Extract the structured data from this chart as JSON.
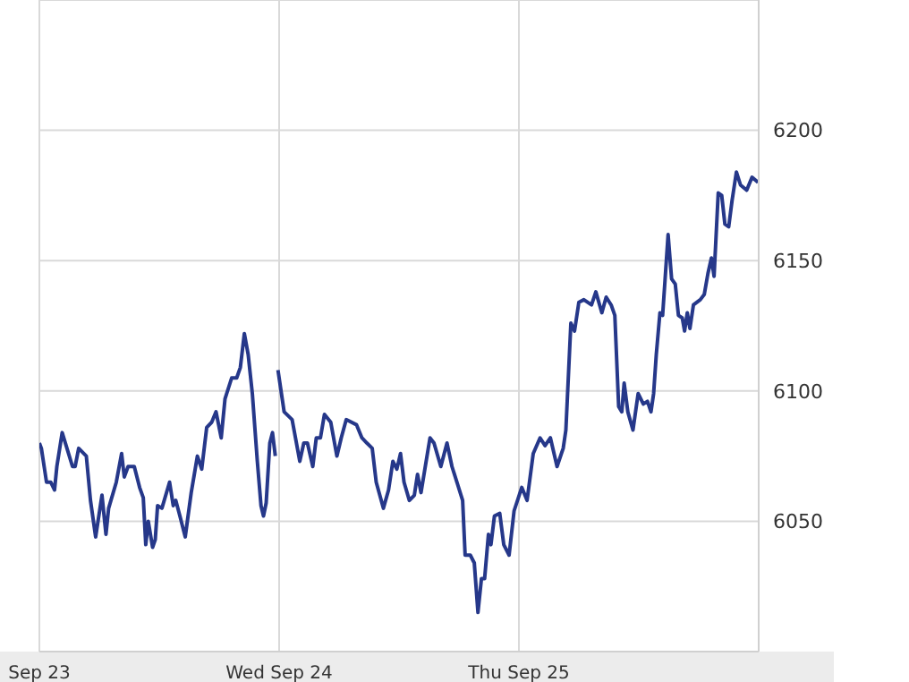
{
  "chart_data": {
    "type": "line",
    "color": "#26388a",
    "x": [
      "--09-23T00:00",
      "--09-23T00:12",
      "--09-23T00:43",
      "--09-23T01:08",
      "--09-23T01:31",
      "--09-23T01:45",
      "--09-23T02:17",
      "--09-23T03:19",
      "--09-23T03:35",
      "--09-23T03:56",
      "--09-23T04:42",
      "--09-23T05:07",
      "--09-23T05:38",
      "--09-23T06:16",
      "--09-23T06:40",
      "--09-23T06:56",
      "--09-23T07:42",
      "--09-23T08:14",
      "--09-23T08:30",
      "--09-23T08:53",
      "--09-23T09:30",
      "--09-23T10:02",
      "--09-23T10:24",
      "--09-23T10:39",
      "--09-23T10:54",
      "--09-23T11:20",
      "--09-23T11:36",
      "--09-23T11:50",
      "--09-23T12:16",
      "--09-23T13:02",
      "--09-23T13:24",
      "--09-23T13:39",
      "--09-23T14:04",
      "--09-23T14:36",
      "--09-23T15:12",
      "--09-23T15:49",
      "--09-23T16:15",
      "--09-23T16:45",
      "--09-23T17:15",
      "--09-23T17:41",
      "--09-23T18:12",
      "--09-23T18:35",
      "--09-23T19:15",
      "--09-23T19:45",
      "--09-23T20:07",
      "--09-23T20:31",
      "--09-23T20:54",
      "--09-23T21:19",
      "--09-23T21:49",
      "--09-23T22:11",
      "--09-23T22:26",
      "--09-23T22:42",
      "--09-23T23:04",
      "--09-23T23:20",
      "--09-23T23:37",
      "--09-23T23:46",
      "--09-23T23:53",
      "--09-24T00:30",
      "--09-24T01:18",
      "--09-24T02:04",
      "--09-24T02:28",
      "--09-24T02:50",
      "--09-24T03:22",
      "--09-24T03:43",
      "--09-24T04:08",
      "--09-24T04:32",
      "--09-24T05:10",
      "--09-24T05:47",
      "--09-24T06:13",
      "--09-24T06:43",
      "--09-24T07:45",
      "--09-24T08:17",
      "--09-24T08:47",
      "--09-24T09:19",
      "--09-24T09:43",
      "--09-24T10:26",
      "--09-24T10:57",
      "--09-24T11:23",
      "--09-24T11:47",
      "--09-24T12:09",
      "--09-24T12:30",
      "--09-24T13:02",
      "--09-24T13:32",
      "--09-24T13:51",
      "--09-24T14:12",
      "--09-24T15:06",
      "--09-24T15:30",
      "--09-24T16:11",
      "--09-24T16:48",
      "--09-24T17:18",
      "--09-24T18:22",
      "--09-24T18:37",
      "--09-24T19:08",
      "--09-24T19:32",
      "--09-24T19:54",
      "--09-24T20:15",
      "--09-24T20:34",
      "--09-24T20:57",
      "--09-24T21:12",
      "--09-24T21:33",
      "--09-24T22:05",
      "--09-24T22:29",
      "--09-24T23:01",
      "--09-24T23:31",
      "--09-25T00:17",
      "--09-25T00:49",
      "--09-25T01:26",
      "--09-25T02:07",
      "--09-25T02:37",
      "--09-25T03:09",
      "--09-25T03:49",
      "--09-25T04:26",
      "--09-25T04:42",
      "--09-25T05:12",
      "--09-25T05:34",
      "--09-25T06:00",
      "--09-25T06:30",
      "--09-25T07:16",
      "--09-25T07:42",
      "--09-25T08:18",
      "--09-25T08:44",
      "--09-25T09:14",
      "--09-25T09:36",
      "--09-25T09:59",
      "--09-25T10:18",
      "--09-25T10:32",
      "--09-25T10:54",
      "--09-25T11:25",
      "--09-25T11:56",
      "--09-25T12:27",
      "--09-25T12:52",
      "--09-25T13:13",
      "--09-25T13:29",
      "--09-25T13:45",
      "--09-25T14:07",
      "--09-25T14:23",
      "--09-25T14:38",
      "--09-25T14:56",
      "--09-25T15:17",
      "--09-25T15:39",
      "--09-25T15:58",
      "--09-25T16:21",
      "--09-25T16:35",
      "--09-25T16:51",
      "--09-25T17:07",
      "--09-25T17:28",
      "--09-25T18:09",
      "--09-25T18:33",
      "--09-25T18:55",
      "--09-25T19:16",
      "--09-25T19:32",
      "--09-25T19:57",
      "--09-25T20:18",
      "--09-25T20:37",
      "--09-25T21:00",
      "--09-25T21:20",
      "--09-25T21:46",
      "--09-25T22:11",
      "--09-25T22:48",
      "--09-25T23:20",
      "--09-25T23:56"
    ],
    "values": [
      6080,
      6078,
      6065,
      6065,
      6062,
      6071,
      6084,
      6071,
      6071,
      6078,
      6075,
      6058,
      6044,
      6060,
      6045,
      6055,
      6065,
      6076,
      6067,
      6071,
      6071,
      6063,
      6059,
      6041,
      6050,
      6040,
      6043,
      6056,
      6055,
      6065,
      6056,
      6058,
      6052,
      6044,
      6061,
      6075,
      6070,
      6086,
      6088,
      6092,
      6082,
      6097,
      6105,
      6105,
      6109,
      6122,
      6114,
      6099,
      6073,
      6056,
      6052,
      6057,
      6080,
      6084,
      6075,
      null,
      6108,
      6092,
      6089,
      6073,
      6080,
      6080,
      6071,
      6082,
      6082,
      6091,
      6088,
      6075,
      6082,
      6089,
      6087,
      6082,
      6080,
      6078,
      6065,
      6055,
      6062,
      6073,
      6070,
      6076,
      6065,
      6058,
      6060,
      6068,
      6061,
      6082,
      6080,
      6071,
      6080,
      6071,
      6058,
      6037,
      6037,
      6034,
      6015,
      6028,
      6028,
      6045,
      6041,
      6052,
      6053,
      6041,
      6037,
      6054,
      6063,
      6058,
      6076,
      6082,
      6079,
      6082,
      6071,
      6078,
      6085,
      6126,
      6123,
      6134,
      6135,
      6133,
      6138,
      6130,
      6136,
      6133,
      6129,
      6094,
      6092,
      6103,
      6092,
      6085,
      6099,
      6095,
      6096,
      6092,
      6099,
      6114,
      6130,
      6129,
      6143,
      6160,
      6143,
      6141,
      6129,
      6128,
      6123,
      6130,
      6124,
      6133,
      6135,
      6137,
      6145,
      6151,
      6144,
      6176,
      6175,
      6164,
      6163,
      6173,
      6184,
      6179,
      6177,
      6182,
      6180
    ],
    "xlim": [
      "--09-23",
      "--09-26"
    ],
    "xticks": [
      {
        "value": "--09-23",
        "label": "Sep 23"
      },
      {
        "value": "--09-24",
        "label": "Wed Sep 24"
      },
      {
        "value": "--09-25",
        "label": "Thu Sep 25"
      }
    ],
    "ylim": [
      6000,
      6250
    ],
    "yticks": [
      6050,
      6100,
      6150,
      6200
    ],
    "grid": true,
    "marker": "none",
    "line_style": "solid"
  }
}
